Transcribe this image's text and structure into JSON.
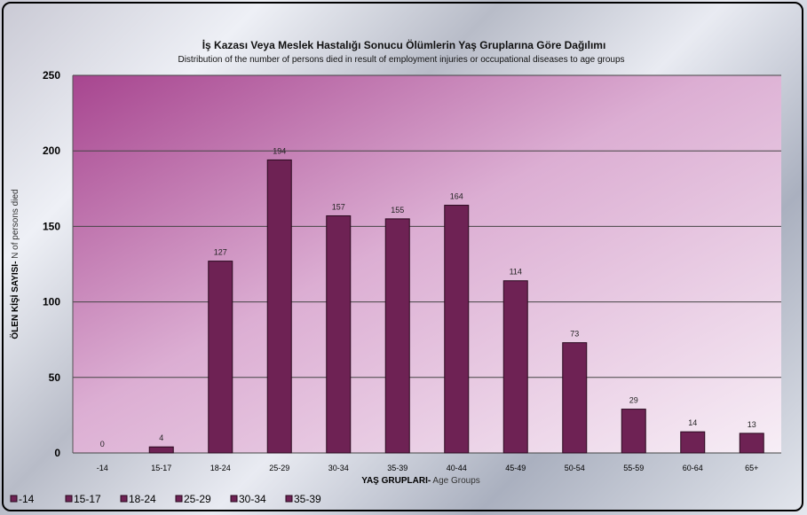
{
  "chart_data": {
    "type": "bar",
    "title": "İş Kazası  Veya Meslek Hastalığı Sonucu Ölümlerin Yaş Gruplarına Göre Dağılımı",
    "subtitle": "Distribution of the number of persons died in result of employment injuries or occupational diseases to age groups",
    "xlabel_bold": "YAŞ GRUPLARI-",
    "xlabel_normal": " Age Groups",
    "ylabel_bold": "ÖLEN KİŞİ SAYISI-",
    "ylabel_normal": " N of persons died",
    "categories": [
      "-14",
      "15-17",
      "18-24",
      "25-29",
      "30-34",
      "35-39",
      "40-44",
      "45-49",
      "50-54",
      "55-59",
      "60-64",
      "65+"
    ],
    "values": [
      0,
      4,
      127,
      194,
      157,
      155,
      164,
      114,
      73,
      29,
      14,
      13
    ],
    "ylim": [
      0,
      250
    ],
    "yticks": [
      0,
      50,
      100,
      150,
      200,
      250
    ],
    "grid": true,
    "legend_position": "bottom",
    "legend": [
      "-14",
      "15-17",
      "18-24",
      "25-29",
      "30-34",
      "35-39"
    ]
  },
  "colors": {
    "bar": "#6e2254",
    "bar_edge": "#2a0a1f",
    "plot_top": "#a7458f",
    "plot_bottom": "#f7eef6"
  }
}
